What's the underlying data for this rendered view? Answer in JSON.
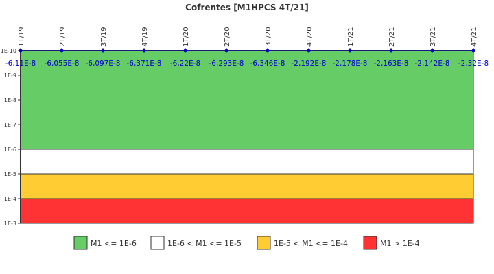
{
  "chart_data": {
    "type": "line",
    "title": "Cofrentes [M1HPCS 4T/21]",
    "categories": [
      "1T/19",
      "2T/19",
      "3T/19",
      "4T/19",
      "1T/20",
      "2T/20",
      "3T/20",
      "4T/20",
      "1T/21",
      "2T/21",
      "3T/21",
      "4T/21"
    ],
    "values": [
      -6.11e-08,
      -6.055e-08,
      -6.097e-08,
      -6.371e-08,
      -6.22e-08,
      -6.293e-08,
      -6.346e-08,
      -2.192e-08,
      -2.178e-08,
      -2.163e-08,
      -2.142e-08,
      -2.32e-08
    ],
    "value_labels": [
      "-6,11E-8",
      "-6,055E-8",
      "-6,097E-8",
      "-6,371E-8",
      "-6,22E-8",
      "-6,293E-8",
      "-6,346E-8",
      "-2,192E-8",
      "-2,178E-8",
      "-2,163E-8",
      "-2,142E-8",
      "-2,32E-8"
    ],
    "yscale": "log",
    "ylim": [
      1e-10,
      0.001
    ],
    "y_inverted": true,
    "ytick_labels": [
      "1E-10",
      "1E-9",
      "1E-8",
      "1E-7",
      "1E-6",
      "1E-5",
      "1E-4",
      "1E-3"
    ],
    "bands": [
      {
        "from": 1e-10,
        "to": 1e-06,
        "color": "#66cc66",
        "label": "M1 <= 1E-6"
      },
      {
        "from": 1e-06,
        "to": 1e-05,
        "color": "#ffffff",
        "label": "1E-6 < M1 <= 1E-5"
      },
      {
        "from": 1e-05,
        "to": 0.0001,
        "color": "#ffcc33",
        "label": "1E-5 < M1 <= 1E-4"
      },
      {
        "from": 0.0001,
        "to": 0.001,
        "color": "#ff3333",
        "label": "M1 > 1E-4"
      }
    ],
    "series_color": "#0000cc",
    "legend_position": "bottom"
  }
}
